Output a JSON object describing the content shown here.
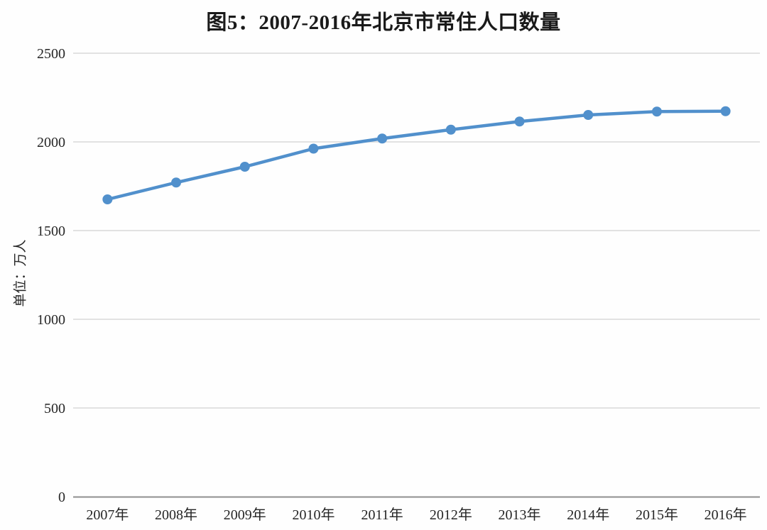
{
  "title": "图5：2007-2016年北京市常住人口数量",
  "colors": {
    "line": "#5190CC",
    "marker": "#5190CC",
    "grid": "#D9D9D9",
    "axis": "#8F8F8F",
    "text": "#262626",
    "title_text": "#1A1A1A",
    "background": "#FEFEFE"
  },
  "chart_data": {
    "type": "line",
    "title": "图5：2007-2016年北京市常住人口数量",
    "categories": [
      "2007年",
      "2008年",
      "2009年",
      "2010年",
      "2011年",
      "2012年",
      "2013年",
      "2014年",
      "2015年",
      "2016年"
    ],
    "values": [
      1676,
      1771,
      1860,
      1962,
      2019,
      2069,
      2115,
      2152,
      2171,
      2173
    ],
    "xlabel": "",
    "ylabel": "单位：万人",
    "ylim": [
      0,
      2500
    ],
    "yticks": [
      0,
      500,
      1000,
      1500,
      2000,
      2500
    ],
    "grid": true,
    "legend": false,
    "marker": "circle"
  }
}
